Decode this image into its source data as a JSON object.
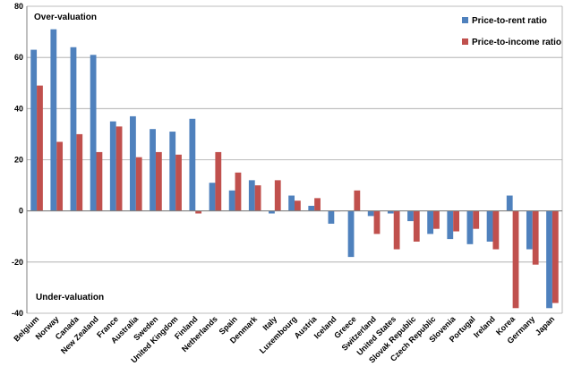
{
  "chart_data": {
    "type": "bar",
    "categories": [
      "Belgium",
      "Norway",
      "Canada",
      "New Zealand",
      "France",
      "Australia",
      "Sweden",
      "United Kingdom",
      "Finland",
      "Netherlands",
      "Spain",
      "Denmark",
      "Italy",
      "Luxembourg",
      "Austria",
      "Iceland",
      "Greece",
      "Switzerland",
      "United States",
      "Slovak Republic",
      "Czech Republic",
      "Slovenia",
      "Portugal",
      "Ireland",
      "Korea",
      "Germany",
      "Japan"
    ],
    "series": [
      {
        "name": "Price-to-rent ratio",
        "color": "#4f81bd",
        "values": [
          63,
          71,
          64,
          61,
          35,
          37,
          32,
          31,
          36,
          11,
          8,
          12,
          -1,
          6,
          2,
          -5,
          -18,
          -2,
          -1,
          -4,
          -9,
          -11,
          -13,
          -12,
          6,
          -15,
          -38
        ]
      },
      {
        "name": "Price-to-income ratio",
        "color": "#c0504d",
        "values": [
          49,
          27,
          30,
          23,
          33,
          21,
          23,
          22,
          -1,
          23,
          15,
          10,
          12,
          4,
          5,
          0,
          8,
          -9,
          -15,
          -12,
          -7,
          -8,
          -7,
          -15,
          -38,
          -21,
          -36
        ]
      }
    ],
    "title": "",
    "xlabel": "",
    "ylabel": "",
    "ylim": [
      -40,
      80
    ],
    "yticks": [
      -40,
      -20,
      0,
      20,
      40,
      60,
      80
    ],
    "grid": true,
    "legend_position": "top-right",
    "annotations": {
      "top": "Over-valuation",
      "bottom": "Under-valuation"
    }
  }
}
